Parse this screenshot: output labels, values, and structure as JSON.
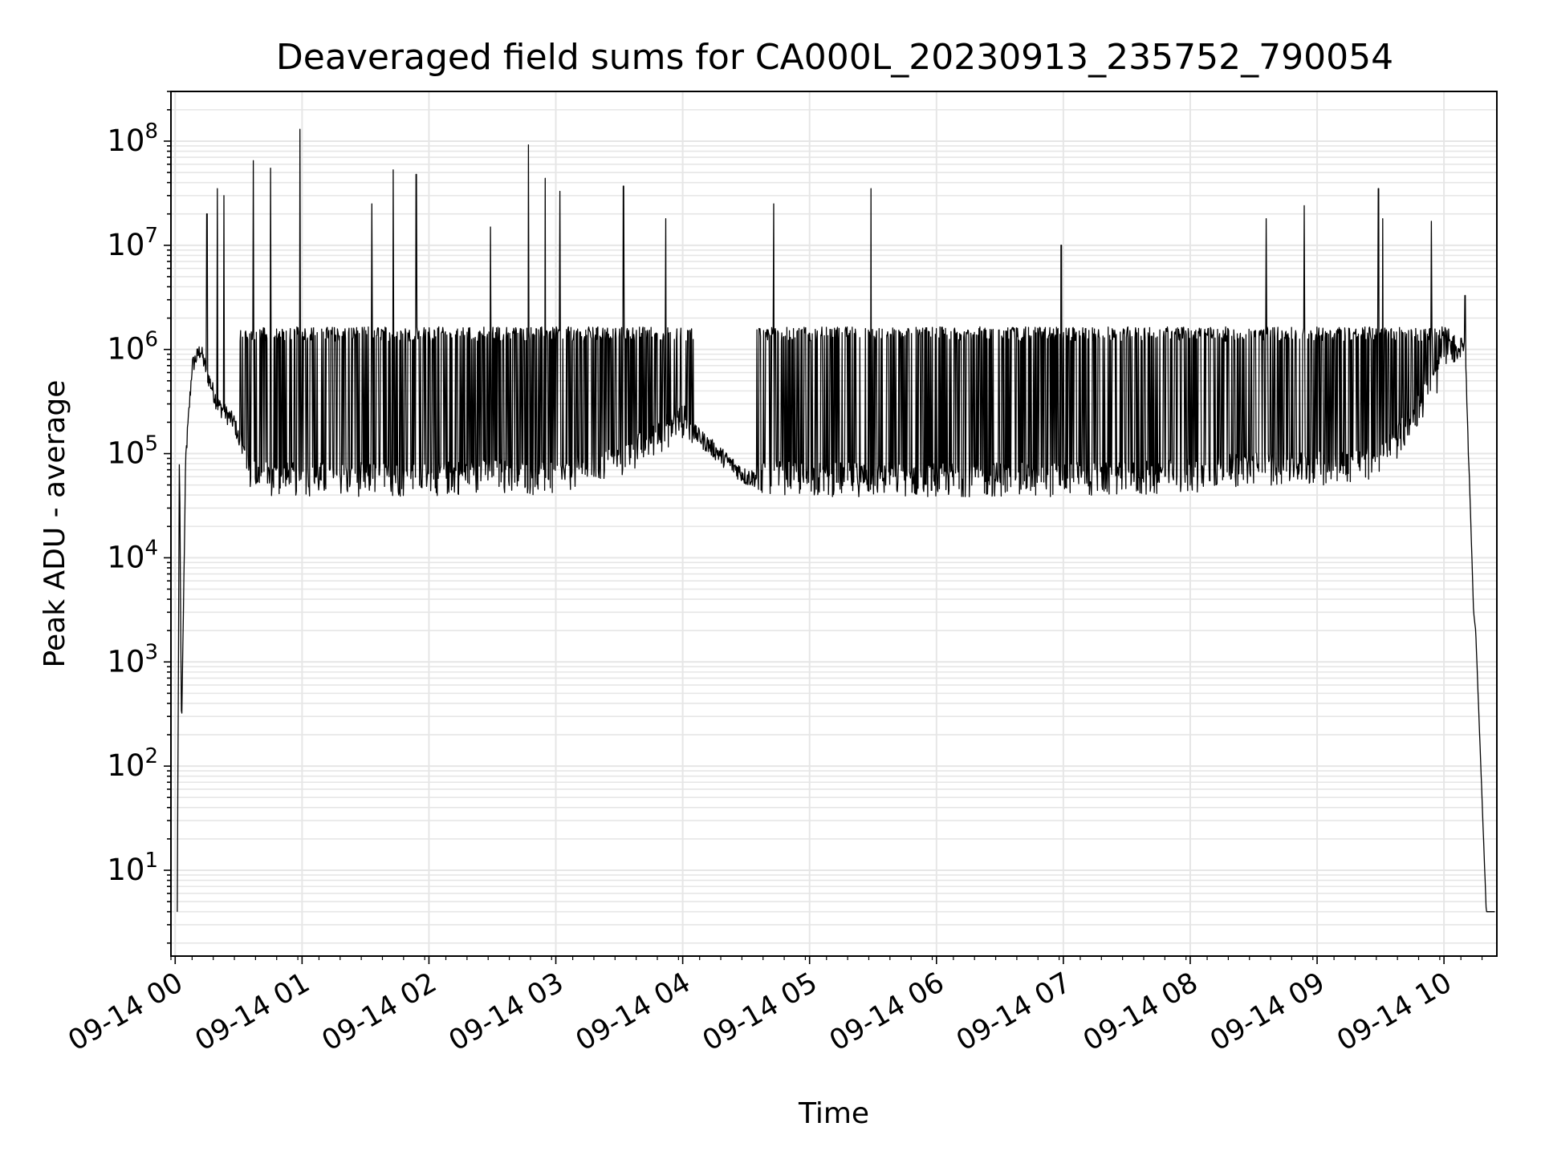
{
  "chart_data": {
    "type": "line",
    "title": "Deaveraged field sums for CA000L_20230913_235752_790054",
    "xlabel": "Time",
    "ylabel": "Peak ADU - average",
    "yscale": "log",
    "ylim": [
      1.5,
      300000000
    ],
    "xlim": [
      "2023-09-13 23:58",
      "2023-09-14 10:25"
    ],
    "grid": true,
    "line_color": "#000000",
    "grid_color": "#e6e6e6",
    "x_ticks": [
      "09-14 00",
      "09-14 01",
      "09-14 02",
      "09-14 03",
      "09-14 04",
      "09-14 05",
      "09-14 06",
      "09-14 07",
      "09-14 08",
      "09-14 09",
      "09-14 10"
    ],
    "y_ticks": [
      {
        "base": "10",
        "exp": "1",
        "value": 10
      },
      {
        "base": "10",
        "exp": "2",
        "value": 100
      },
      {
        "base": "10",
        "exp": "3",
        "value": 1000
      },
      {
        "base": "10",
        "exp": "4",
        "value": 10000
      },
      {
        "base": "10",
        "exp": "5",
        "value": 100000
      },
      {
        "base": "10",
        "exp": "6",
        "value": 1000000
      },
      {
        "base": "10",
        "exp": "7",
        "value": 10000000
      },
      {
        "base": "10",
        "exp": "8",
        "value": 100000000
      }
    ],
    "series": [
      {
        "x": [
          "2023-09-14 00:01",
          "2023-09-14 00:02",
          "2023-09-14 00:03",
          "2023-09-14 00:05",
          "2023-09-14 00:08",
          "2023-09-14 00:12",
          "2023-09-14 00:15",
          "2023-09-14 00:20",
          "2023-09-14 00:28",
          "2023-09-14 00:35",
          "2023-09-14 00:45",
          "2023-09-14 01:00",
          "2023-09-14 01:30",
          "2023-09-14 02:00",
          "2023-09-14 02:30",
          "2023-09-14 03:00",
          "2023-09-14 03:30",
          "2023-09-14 04:00",
          "2023-09-14 04:30",
          "2023-09-14 05:00",
          "2023-09-14 05:30",
          "2023-09-14 06:00",
          "2023-09-14 06:30",
          "2023-09-14 07:00",
          "2023-09-14 07:30",
          "2023-09-14 08:00",
          "2023-09-14 08:30",
          "2023-09-14 09:00",
          "2023-09-14 09:30",
          "2023-09-14 09:45",
          "2023-09-14 10:00",
          "2023-09-14 10:10",
          "2023-09-14 10:14",
          "2023-09-14 10:15",
          "2023-09-14 10:20",
          "2023-09-14 10:24"
        ],
        "baseline": [
          4,
          120000,
          200,
          90000,
          700000,
          1000000,
          600000,
          300000,
          200000,
          60000,
          55000,
          55000,
          55000,
          55000,
          60000,
          55000,
          80000,
          200000,
          60000,
          55000,
          55000,
          55000,
          55000,
          55000,
          55000,
          60000,
          70000,
          70000,
          80000,
          200000,
          700000,
          1200000,
          3000,
          2000,
          4,
          4
        ],
        "band_high": 1500000,
        "spikes": [
          {
            "x": "2023-09-14 00:15",
            "y": 20000000
          },
          {
            "x": "2023-09-14 00:20",
            "y": 35000000
          },
          {
            "x": "2023-09-14 00:23",
            "y": 30000000
          },
          {
            "x": "2023-09-14 00:37",
            "y": 65000000
          },
          {
            "x": "2023-09-14 00:45",
            "y": 55000000
          },
          {
            "x": "2023-09-14 00:59",
            "y": 130000000
          },
          {
            "x": "2023-09-14 01:33",
            "y": 25000000
          },
          {
            "x": "2023-09-14 01:43",
            "y": 53000000
          },
          {
            "x": "2023-09-14 01:54",
            "y": 48000000
          },
          {
            "x": "2023-09-14 02:29",
            "y": 15000000
          },
          {
            "x": "2023-09-14 02:47",
            "y": 92000000
          },
          {
            "x": "2023-09-14 02:55",
            "y": 44000000
          },
          {
            "x": "2023-09-14 03:02",
            "y": 33000000
          },
          {
            "x": "2023-09-14 03:32",
            "y": 37000000
          },
          {
            "x": "2023-09-14 03:52",
            "y": 18000000
          },
          {
            "x": "2023-09-14 04:43",
            "y": 25000000
          },
          {
            "x": "2023-09-14 05:29",
            "y": 35000000
          },
          {
            "x": "2023-09-14 06:59",
            "y": 10000000
          },
          {
            "x": "2023-09-14 08:36",
            "y": 18000000
          },
          {
            "x": "2023-09-14 08:54",
            "y": 24000000
          },
          {
            "x": "2023-09-14 09:29",
            "y": 35000000
          },
          {
            "x": "2023-09-14 09:31",
            "y": 18000000
          },
          {
            "x": "2023-09-14 09:54",
            "y": 17000000
          },
          {
            "x": "2023-09-14 10:10",
            "y": 3300000
          }
        ]
      }
    ]
  }
}
